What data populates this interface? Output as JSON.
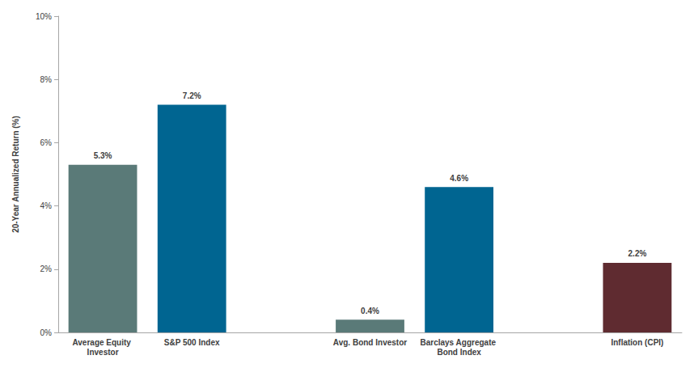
{
  "chart_data": {
    "type": "bar",
    "y_label": "20-Year Annualized Return (%)",
    "categories": [
      "Average Equity Investor",
      "S&P 500 Index",
      null,
      "Avg. Bond Investor",
      "Barclays Aggregate Bond Index",
      null,
      "Inflation (CPI)"
    ],
    "values": [
      5.3,
      7.2,
      null,
      0.4,
      4.6,
      null,
      2.2
    ],
    "value_labels": [
      "5.3%",
      "7.2%",
      null,
      "0.4%",
      "4.6%",
      null,
      "2.2%"
    ],
    "colors": [
      "#5a7a78",
      "#006591",
      null,
      "#5a7a78",
      "#006591",
      null,
      "#5f2b30"
    ],
    "ylim": [
      0,
      10
    ],
    "yticks": [
      {
        "value": 0,
        "label": "0%"
      },
      {
        "value": 2,
        "label": "2%"
      },
      {
        "value": 4,
        "label": "4%"
      },
      {
        "value": 6,
        "label": "6%"
      },
      {
        "value": 8,
        "label": "8%"
      },
      {
        "value": 10,
        "label": "10%"
      }
    ],
    "grid": false,
    "data_labels": true
  }
}
